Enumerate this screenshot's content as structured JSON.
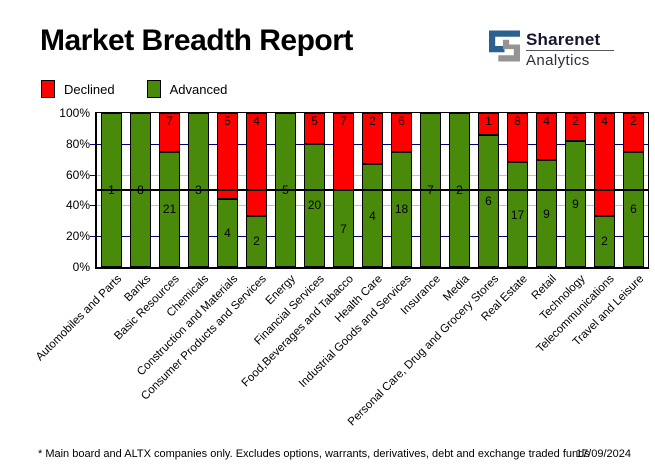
{
  "header": {
    "title": "Market Breadth Report",
    "logo": {
      "brand": "Sharenet",
      "sub": "Analytics"
    }
  },
  "legend": [
    {
      "label": "Declined",
      "color": "#ff0000"
    },
    {
      "label": "Advanced",
      "color": "#4a8a0a"
    }
  ],
  "chart_data": {
    "type": "bar",
    "stacked": true,
    "normalized": "percent_of_total",
    "title": "Market Breadth Report",
    "categories": [
      "Automobiles and Parts",
      "Banks",
      "Basic Resources",
      "Chemicals",
      "Construction and Materials",
      "Consumer Products and Services",
      "Energy",
      "Financial Services",
      "Food,Beverages and Tabacco",
      "Health Care",
      "Industrial Goods and Services",
      "Insurance",
      "Media",
      "Personal Care, Drug and Grocery Stores",
      "Real Estate",
      "Retail",
      "Technology",
      "Telecommunications",
      "Travel and Leisure"
    ],
    "series": [
      {
        "name": "Declined",
        "color": "#ff0000",
        "values": [
          0,
          0,
          7,
          0,
          5,
          4,
          0,
          5,
          7,
          2,
          6,
          0,
          0,
          1,
          8,
          4,
          2,
          4,
          2
        ]
      },
      {
        "name": "Advanced",
        "color": "#4a8a0a",
        "values": [
          1,
          8,
          21,
          3,
          4,
          2,
          5,
          20,
          7,
          4,
          18,
          7,
          2,
          6,
          17,
          9,
          9,
          2,
          6
        ]
      }
    ],
    "y_ticks": [
      "0%",
      "20%",
      "40%",
      "60%",
      "80%",
      "100%"
    ],
    "ylim": [
      0,
      100
    ],
    "legend_position": "top-left",
    "grid": {
      "navy_pcts": [
        20,
        80
      ],
      "gray_pcts": [
        40,
        60
      ],
      "black_pct": 50
    }
  },
  "footer": {
    "note": "* Main board and ALTX companies only. Excludes options, warrants, derivatives, debt and exchange traded funds",
    "date": "17/09/2024"
  },
  "colors": {
    "advanced": "#4a8a0a",
    "declined": "#ff0000",
    "grid_navy": "#000080",
    "grid_gray": "#c0c0c0",
    "axis_black": "#000000",
    "logo_blue": "#2c608f",
    "logo_gray": "#949494"
  }
}
